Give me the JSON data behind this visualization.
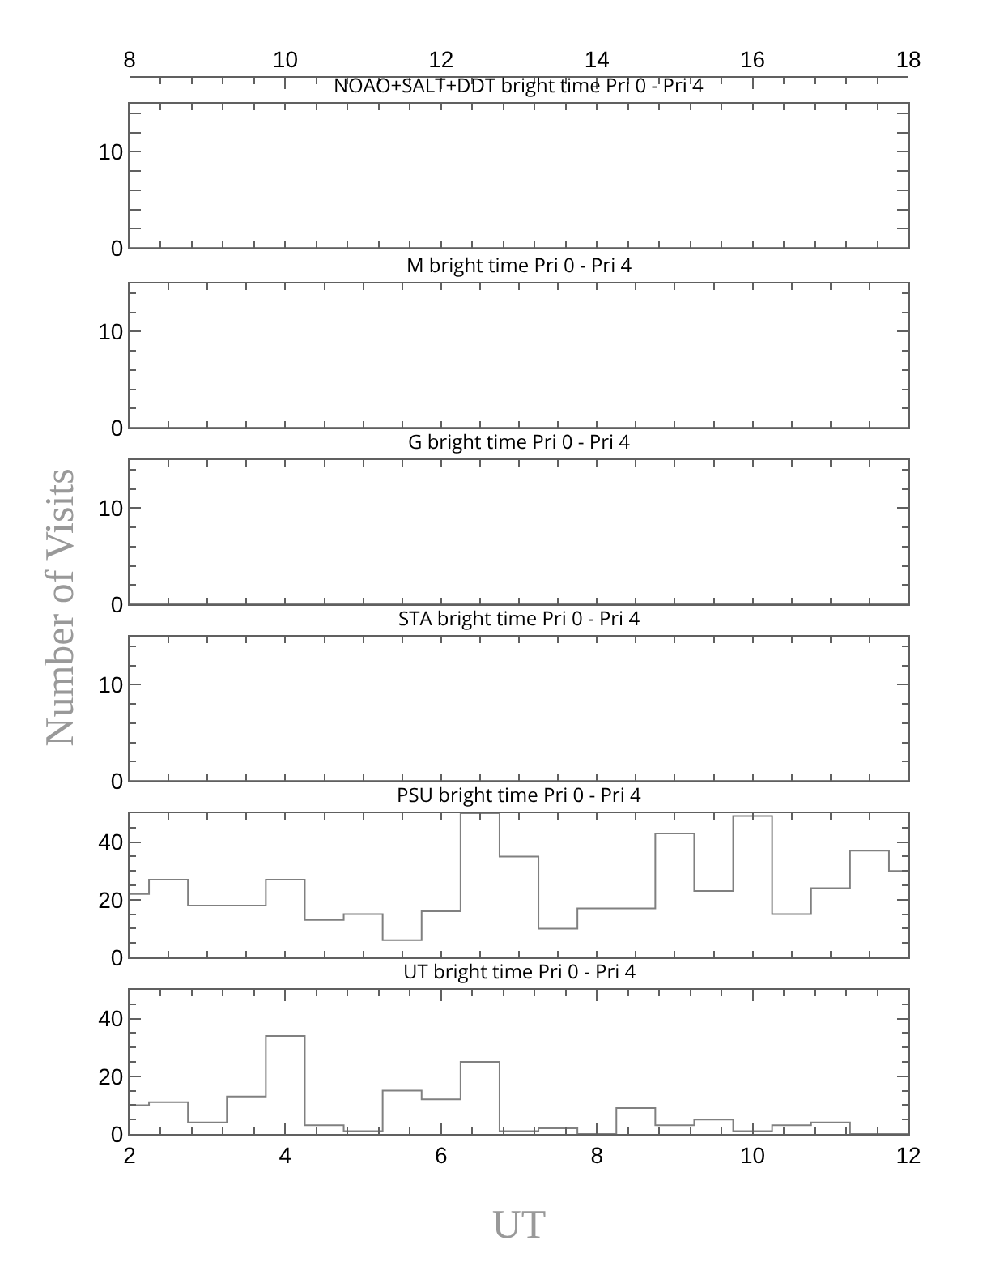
{
  "chart_data": [
    {
      "type": "histogram",
      "title": "NOAO+SALT+DDT bright time Pri 0 - Pri 4",
      "bins": [
        2,
        2.25,
        2.75,
        3.25,
        3.75,
        4.25,
        4.75,
        5.25,
        5.75,
        6.25,
        6.75,
        7.25,
        7.75,
        8.25,
        8.75,
        9.25,
        9.75,
        10.25,
        10.75,
        11.25,
        11.75,
        12
      ],
      "values": [
        0,
        0,
        0,
        0,
        0,
        0,
        0,
        0,
        0,
        0,
        0,
        0,
        0,
        0,
        0,
        0,
        0,
        0,
        0,
        0,
        0
      ],
      "color": "#808080",
      "xlim": [
        2,
        12
      ],
      "ylim": [
        0,
        15
      ],
      "yticks": [
        0,
        10
      ],
      "x2lim": [
        8,
        18
      ],
      "x2ticks": [
        8,
        10,
        12,
        14,
        16,
        18
      ],
      "tick_labels": "y"
    },
    {
      "type": "histogram",
      "title": "M bright time Pri 0 - Pri 4",
      "bins": [
        2,
        2.25,
        2.75,
        3.25,
        3.75,
        4.25,
        4.75,
        5.25,
        5.75,
        6.25,
        6.75,
        7.25,
        7.75,
        8.25,
        8.75,
        9.25,
        9.75,
        10.25,
        10.75,
        11.25,
        11.75,
        12
      ],
      "values": [
        0,
        0,
        0,
        0,
        0,
        0,
        0,
        0,
        0,
        0,
        0,
        0,
        0,
        0,
        0,
        0,
        0,
        0,
        0,
        0,
        0
      ],
      "color": "#808080",
      "xlim": [
        2,
        12
      ],
      "ylim": [
        0,
        15
      ],
      "yticks": [
        0,
        10
      ],
      "tick_labels": "y"
    },
    {
      "type": "histogram",
      "title": "G bright time Pri 0 - Pri 4",
      "bins": [
        2,
        2.25,
        2.75,
        3.25,
        3.75,
        4.25,
        4.75,
        5.25,
        5.75,
        6.25,
        6.75,
        7.25,
        7.75,
        8.25,
        8.75,
        9.25,
        9.75,
        10.25,
        10.75,
        11.25,
        11.75,
        12
      ],
      "values": [
        0,
        0,
        0,
        0,
        0,
        0,
        0,
        0,
        0,
        0,
        0,
        0,
        0,
        0,
        0,
        0,
        0,
        0,
        0,
        0,
        0
      ],
      "color": "#808080",
      "xlim": [
        2,
        12
      ],
      "ylim": [
        0,
        15
      ],
      "yticks": [
        0,
        10
      ],
      "tick_labels": "y"
    },
    {
      "type": "histogram",
      "title": "STA bright time Pri 0 - Pri 4",
      "ylabel": "Number of Visits",
      "bins": [
        2,
        2.25,
        2.75,
        3.25,
        3.75,
        4.25,
        4.75,
        5.25,
        5.75,
        6.25,
        6.75,
        7.25,
        7.75,
        8.25,
        8.75,
        9.25,
        9.75,
        10.25,
        10.75,
        11.25,
        11.75,
        12
      ],
      "values": [
        0,
        0,
        0,
        0,
        0,
        0,
        0,
        0,
        0,
        0,
        0,
        0,
        0,
        0,
        0,
        0,
        0,
        0,
        0,
        0,
        0
      ],
      "color": "#808080",
      "xlim": [
        2,
        12
      ],
      "ylim": [
        0,
        15
      ],
      "yticks": [
        0,
        10
      ],
      "tick_labels": "y"
    },
    {
      "type": "histogram",
      "title": "PSU bright time Pri 0 - Pri 4",
      "bins": [
        2,
        2.25,
        2.75,
        3.25,
        3.75,
        4.25,
        4.75,
        5.25,
        5.75,
        6.25,
        6.75,
        7.25,
        7.75,
        8.25,
        8.75,
        9.25,
        9.75,
        10.25,
        10.75,
        11.25,
        11.75,
        12
      ],
      "values": [
        22,
        27,
        18,
        18,
        27,
        13,
        15,
        6,
        16,
        50,
        35,
        10,
        17,
        17,
        43,
        23,
        49,
        15,
        24,
        37,
        30
      ],
      "color": "#808080",
      "xlim": [
        2,
        12
      ],
      "ylim": [
        0,
        50
      ],
      "yticks": [
        0,
        20,
        40
      ],
      "tick_labels": "y"
    },
    {
      "type": "histogram",
      "title": "UT bright time Pri 0 - Pri 4",
      "xlabel": "UT",
      "bins": [
        2,
        2.25,
        2.75,
        3.25,
        3.75,
        4.25,
        4.75,
        5.25,
        5.75,
        6.25,
        6.75,
        7.25,
        7.75,
        8.25,
        8.75,
        9.25,
        9.75,
        10.25,
        10.75,
        11.25,
        11.75,
        12
      ],
      "values": [
        10,
        11,
        4,
        13,
        34,
        3,
        1,
        15,
        12,
        25,
        1,
        2,
        0,
        9,
        3,
        5,
        1,
        3,
        4,
        0,
        0
      ],
      "color": "#808080",
      "xlim": [
        2,
        12
      ],
      "xticks": [
        2,
        4,
        6,
        8,
        10,
        12
      ],
      "ylim": [
        0,
        50
      ],
      "yticks": [
        0,
        20,
        40
      ]
    }
  ]
}
